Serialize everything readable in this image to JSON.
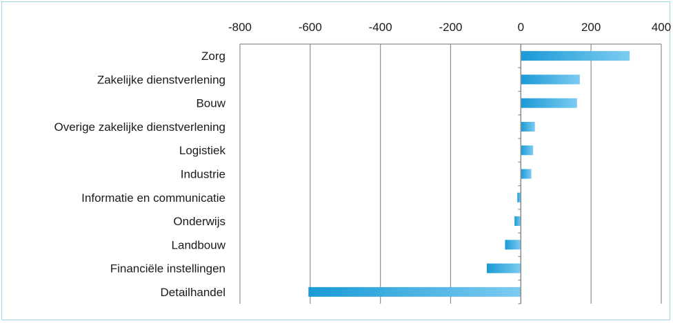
{
  "chart_data": {
    "type": "bar",
    "orientation": "horizontal",
    "title": "",
    "xlabel": "",
    "ylabel": "",
    "xlim": [
      -800,
      400
    ],
    "x_ticks": [
      -800,
      -600,
      -400,
      -200,
      0,
      200,
      400
    ],
    "x_tick_labels": [
      "-800",
      "-600",
      "-400",
      "-200",
      "0",
      "200",
      "400"
    ],
    "x_axis_position": "top",
    "grid": "vertical",
    "bar_color": "#1a9ad6",
    "bar_color_light": "#7ccbf0",
    "categories": [
      "Zorg",
      "Zakelijke dienstverlening",
      "Bouw",
      "Overige zakelijke dienstverlening",
      "Logistiek",
      "Industrie",
      "Informatie en communicatie",
      "Onderwijs",
      "Landbouw",
      "Financiële instellingen",
      "Detailhandel"
    ],
    "values": [
      310,
      168,
      160,
      40,
      35,
      30,
      -10,
      -18,
      -45,
      -97,
      -605
    ]
  }
}
